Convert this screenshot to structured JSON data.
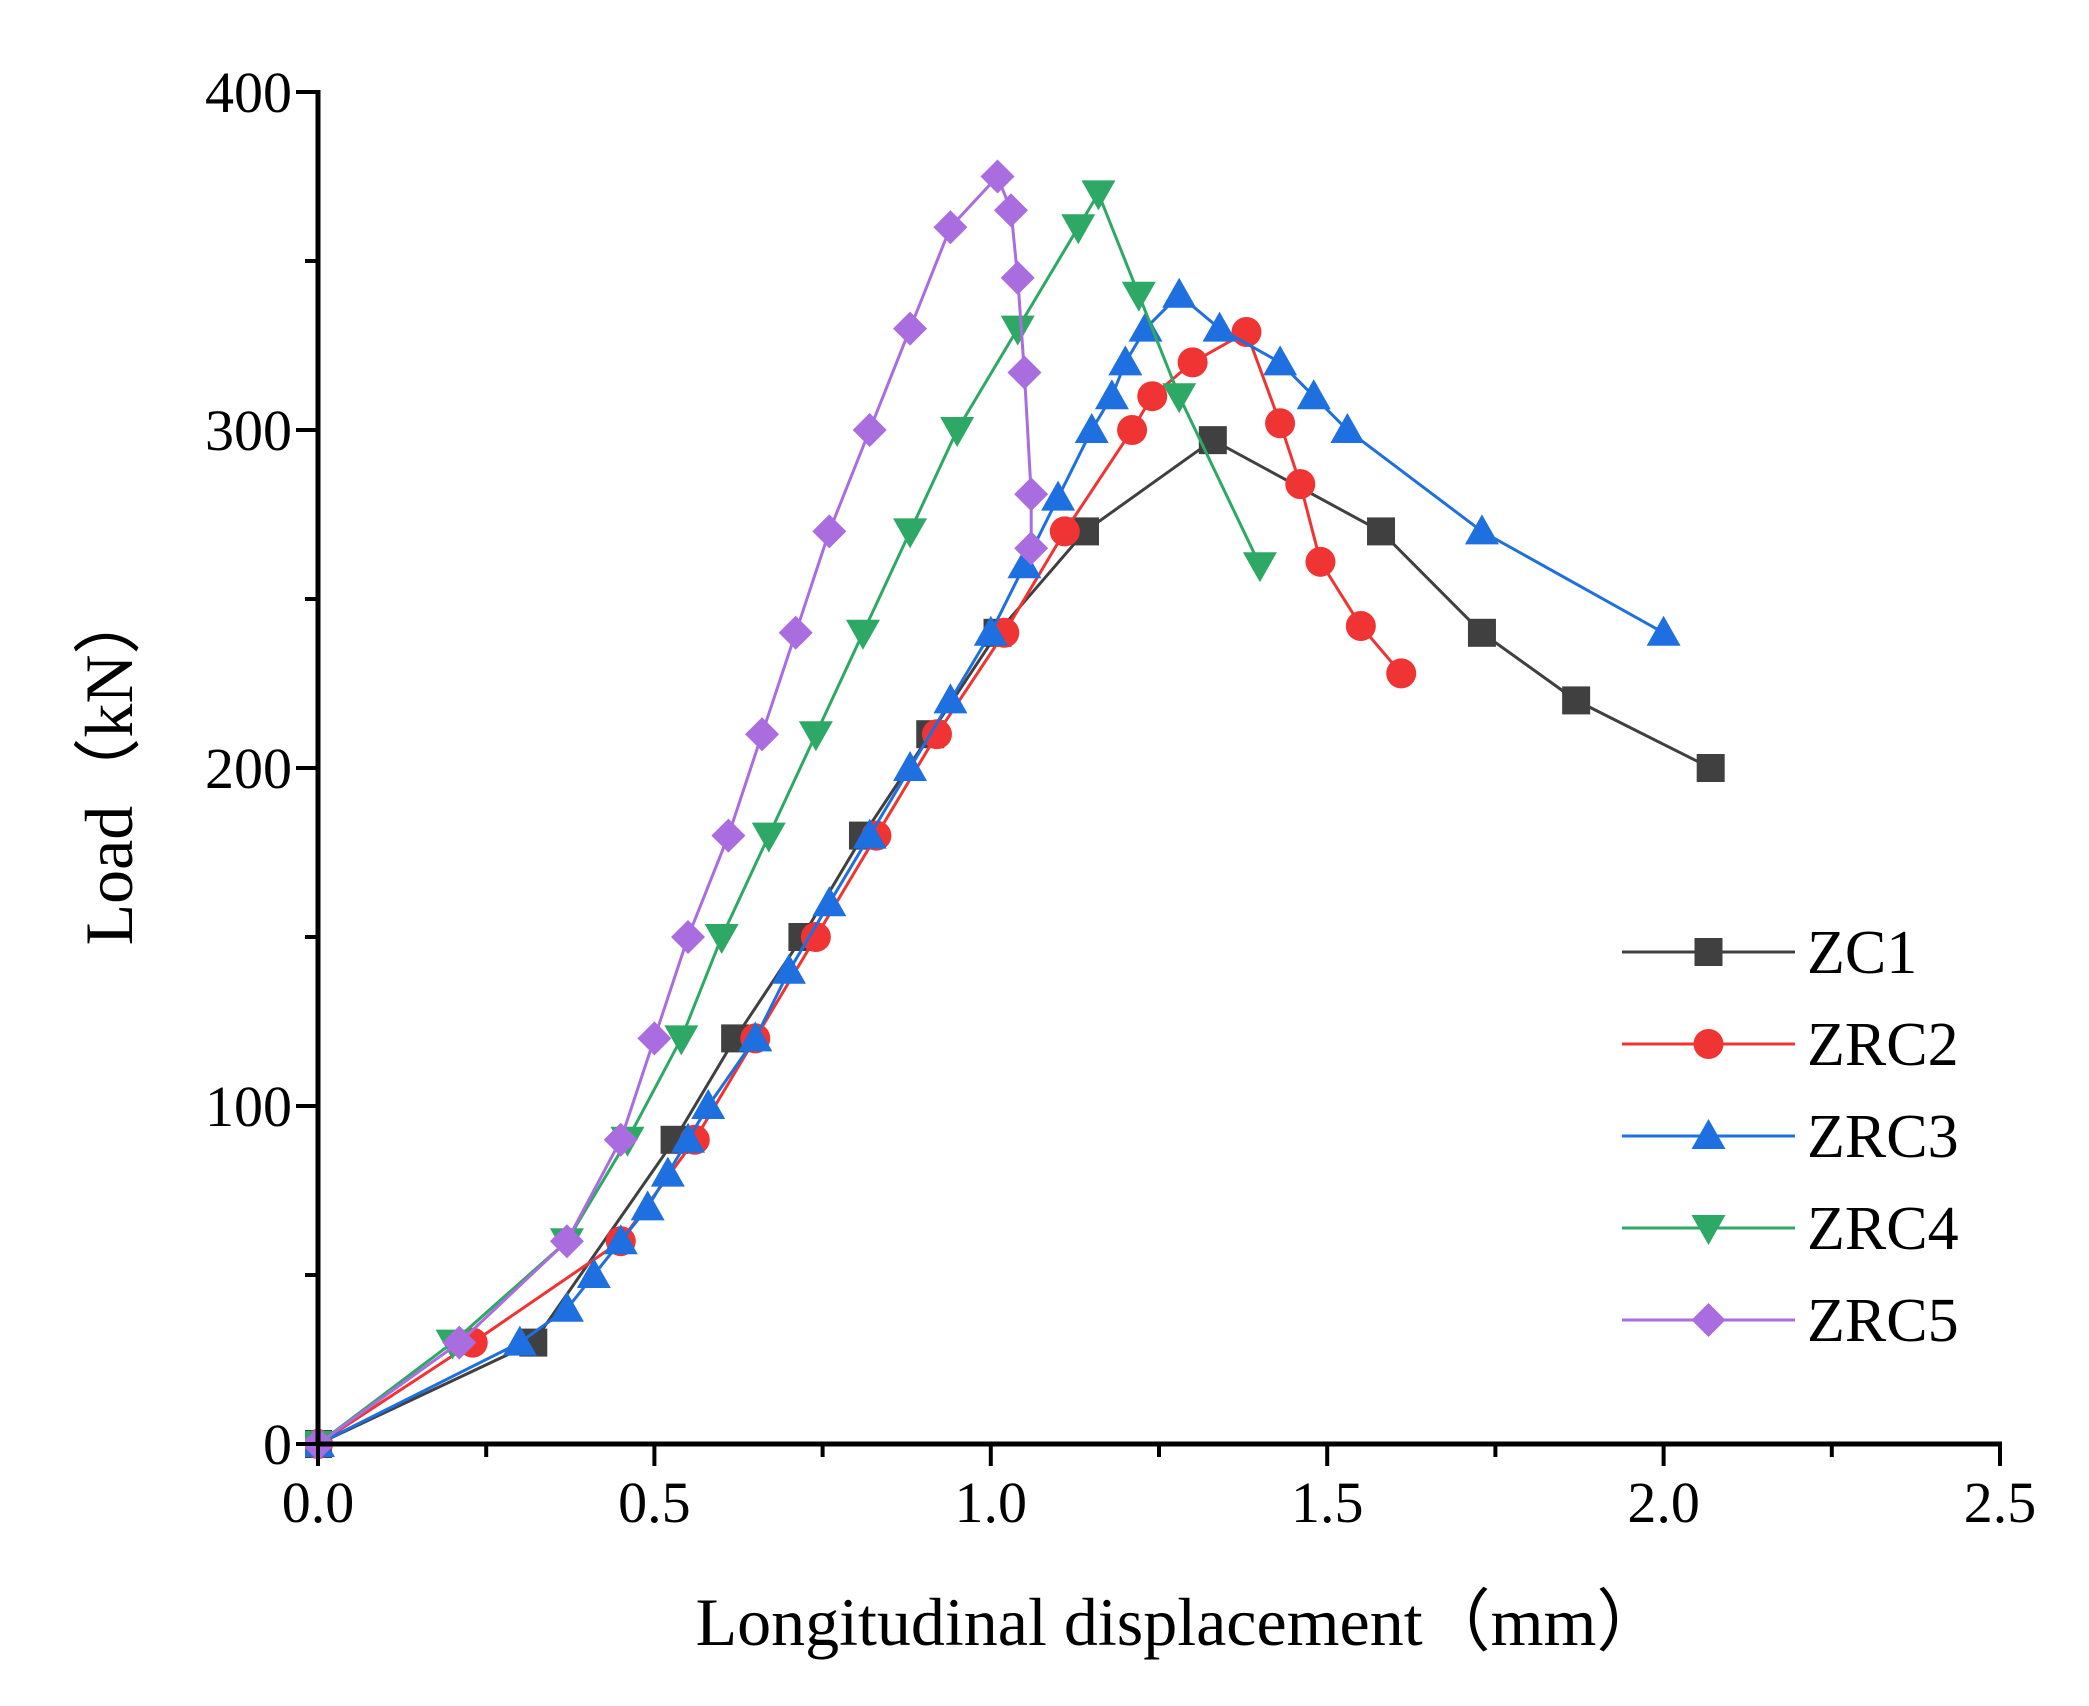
{
  "chart_data": {
    "type": "line",
    "title": "",
    "xlabel": "Longitudinal displacement（mm）",
    "ylabel": "Load（kN）",
    "xlim": [
      0,
      2.5
    ],
    "ylim": [
      0,
      400
    ],
    "x_ticks": [
      "0.0",
      "0.5",
      "1.0",
      "1.5",
      "2.0",
      "2.5"
    ],
    "y_ticks": [
      "0",
      "100",
      "200",
      "300",
      "400"
    ],
    "grid": false,
    "legend_position": "bottom-right",
    "series": [
      {
        "name": "ZC1",
        "color": "#404040",
        "marker": "square",
        "points": [
          [
            0,
            0
          ],
          [
            0.32,
            30
          ],
          [
            0.53,
            90
          ],
          [
            0.62,
            120
          ],
          [
            0.72,
            150
          ],
          [
            0.81,
            180
          ],
          [
            0.91,
            210
          ],
          [
            1.01,
            240
          ],
          [
            1.14,
            270
          ],
          [
            1.33,
            297
          ],
          [
            1.58,
            270
          ],
          [
            1.73,
            240
          ],
          [
            1.87,
            220
          ],
          [
            2.07,
            200
          ]
        ]
      },
      {
        "name": "ZRC2",
        "color": "#f03434",
        "marker": "circle",
        "points": [
          [
            0,
            0
          ],
          [
            0.23,
            30
          ],
          [
            0.45,
            60
          ],
          [
            0.56,
            90
          ],
          [
            0.65,
            120
          ],
          [
            0.74,
            150
          ],
          [
            0.83,
            180
          ],
          [
            0.92,
            210
          ],
          [
            1.02,
            240
          ],
          [
            1.11,
            270
          ],
          [
            1.21,
            300
          ],
          [
            1.24,
            310
          ],
          [
            1.3,
            320
          ],
          [
            1.38,
            329
          ],
          [
            1.43,
            302
          ],
          [
            1.46,
            284
          ],
          [
            1.49,
            261
          ],
          [
            1.55,
            242
          ],
          [
            1.61,
            228
          ]
        ]
      },
      {
        "name": "ZRC3",
        "color": "#1e6fe0",
        "marker": "triangle-up",
        "points": [
          [
            0,
            0
          ],
          [
            0.3,
            30
          ],
          [
            0.37,
            40
          ],
          [
            0.41,
            50
          ],
          [
            0.45,
            60
          ],
          [
            0.49,
            70
          ],
          [
            0.52,
            80
          ],
          [
            0.55,
            90
          ],
          [
            0.58,
            100
          ],
          [
            0.65,
            120
          ],
          [
            0.7,
            140
          ],
          [
            0.76,
            160
          ],
          [
            0.82,
            180
          ],
          [
            0.88,
            200
          ],
          [
            0.94,
            220
          ],
          [
            1.0,
            240
          ],
          [
            1.05,
            260
          ],
          [
            1.1,
            280
          ],
          [
            1.15,
            300
          ],
          [
            1.18,
            310
          ],
          [
            1.2,
            320
          ],
          [
            1.23,
            330
          ],
          [
            1.28,
            340
          ],
          [
            1.34,
            330
          ],
          [
            1.43,
            320
          ],
          [
            1.48,
            310
          ],
          [
            1.53,
            300
          ],
          [
            1.73,
            270
          ],
          [
            2.0,
            240
          ]
        ]
      },
      {
        "name": "ZRC4",
        "color": "#2ea865",
        "marker": "triangle-down",
        "points": [
          [
            0,
            0
          ],
          [
            0.2,
            30
          ],
          [
            0.37,
            60
          ],
          [
            0.46,
            90
          ],
          [
            0.54,
            120
          ],
          [
            0.6,
            150
          ],
          [
            0.67,
            180
          ],
          [
            0.74,
            210
          ],
          [
            0.81,
            240
          ],
          [
            0.88,
            270
          ],
          [
            0.95,
            300
          ],
          [
            1.04,
            330
          ],
          [
            1.13,
            360
          ],
          [
            1.16,
            370
          ],
          [
            1.22,
            340
          ],
          [
            1.28,
            310
          ],
          [
            1.4,
            260
          ]
        ]
      },
      {
        "name": "ZRC5",
        "color": "#a96de0",
        "marker": "diamond",
        "points": [
          [
            0,
            0
          ],
          [
            0.21,
            30
          ],
          [
            0.37,
            60
          ],
          [
            0.45,
            90
          ],
          [
            0.5,
            120
          ],
          [
            0.55,
            150
          ],
          [
            0.61,
            180
          ],
          [
            0.66,
            210
          ],
          [
            0.71,
            240
          ],
          [
            0.76,
            270
          ],
          [
            0.82,
            300
          ],
          [
            0.88,
            330
          ],
          [
            0.94,
            360
          ],
          [
            1.01,
            375
          ],
          [
            1.03,
            365
          ],
          [
            1.04,
            345
          ],
          [
            1.05,
            317
          ],
          [
            1.06,
            281
          ],
          [
            1.06,
            265
          ]
        ]
      }
    ]
  }
}
